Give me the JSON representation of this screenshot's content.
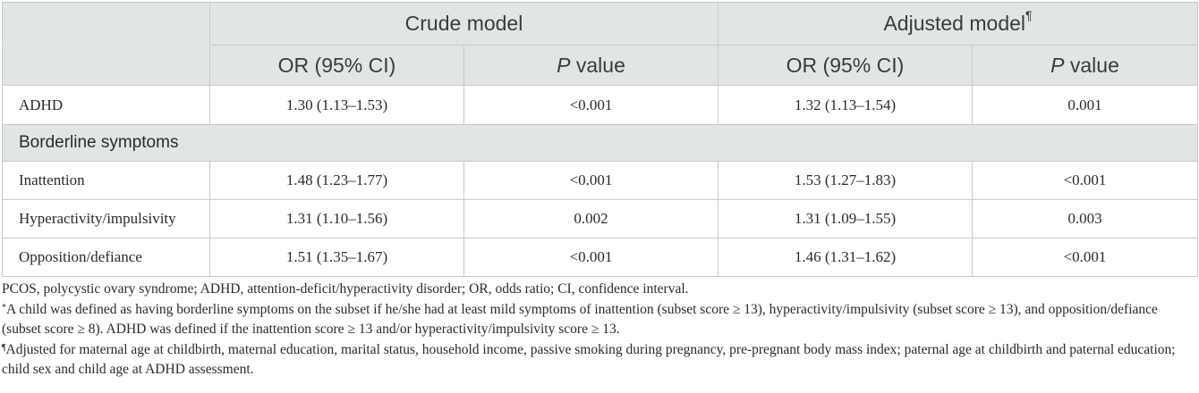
{
  "header": {
    "crude_model": "Crude model",
    "adjusted_model": "Adjusted model",
    "adjusted_mark": "¶",
    "or_label": "OR (95% CI)",
    "p_italic": "P",
    "p_rest": " value"
  },
  "rows": {
    "adhd": {
      "label": "ADHD",
      "crude_or": "1.30 (1.13–1.53)",
      "crude_p": "<0.001",
      "adj_or": "1.32 (1.13–1.54)",
      "adj_p": "0.001"
    },
    "section": "Borderline symptoms",
    "inattention": {
      "label": "Inattention",
      "crude_or": "1.48 (1.23–1.77)",
      "crude_p": "<0.001",
      "adj_or": "1.53 (1.27–1.83)",
      "adj_p": "<0.001"
    },
    "hyper": {
      "label": "Hyperactivity/impulsivity",
      "crude_or": "1.31 (1.10–1.56)",
      "crude_p": "0.002",
      "adj_or": "1.31 (1.09–1.55)",
      "adj_p": "0.003"
    },
    "opposition": {
      "label": "Opposition/defiance",
      "crude_or": "1.51 (1.35–1.67)",
      "crude_p": "<0.001",
      "adj_or": "1.46 (1.31–1.62)",
      "adj_p": "<0.001"
    }
  },
  "notes": {
    "abbrev": "PCOS, polycystic ovary syndrome; ADHD, attention-deficit/hyperactivity disorder; OR, odds ratio; CI, confidence interval.",
    "star_mark": "*",
    "star_text": "A child was defined as having borderline symptoms on the subset if he/she had at least mild symptoms of inattention (subset score ≥ 13), hyperactivity/impulsivity (subset score ≥ 13), and opposition/defiance (subset score ≥ 8). ADHD was defined if the inattention score ≥ 13 and/or hyperactivity/impulsivity score ≥ 13.",
    "pilcrow_mark": "¶",
    "pilcrow_text": "Adjusted for maternal age at childbirth, maternal education, marital status, household income, passive smoking during pregnancy, pre-pregnant body mass index; paternal age at childbirth and paternal education; child sex and child age at ADHD assessment."
  }
}
